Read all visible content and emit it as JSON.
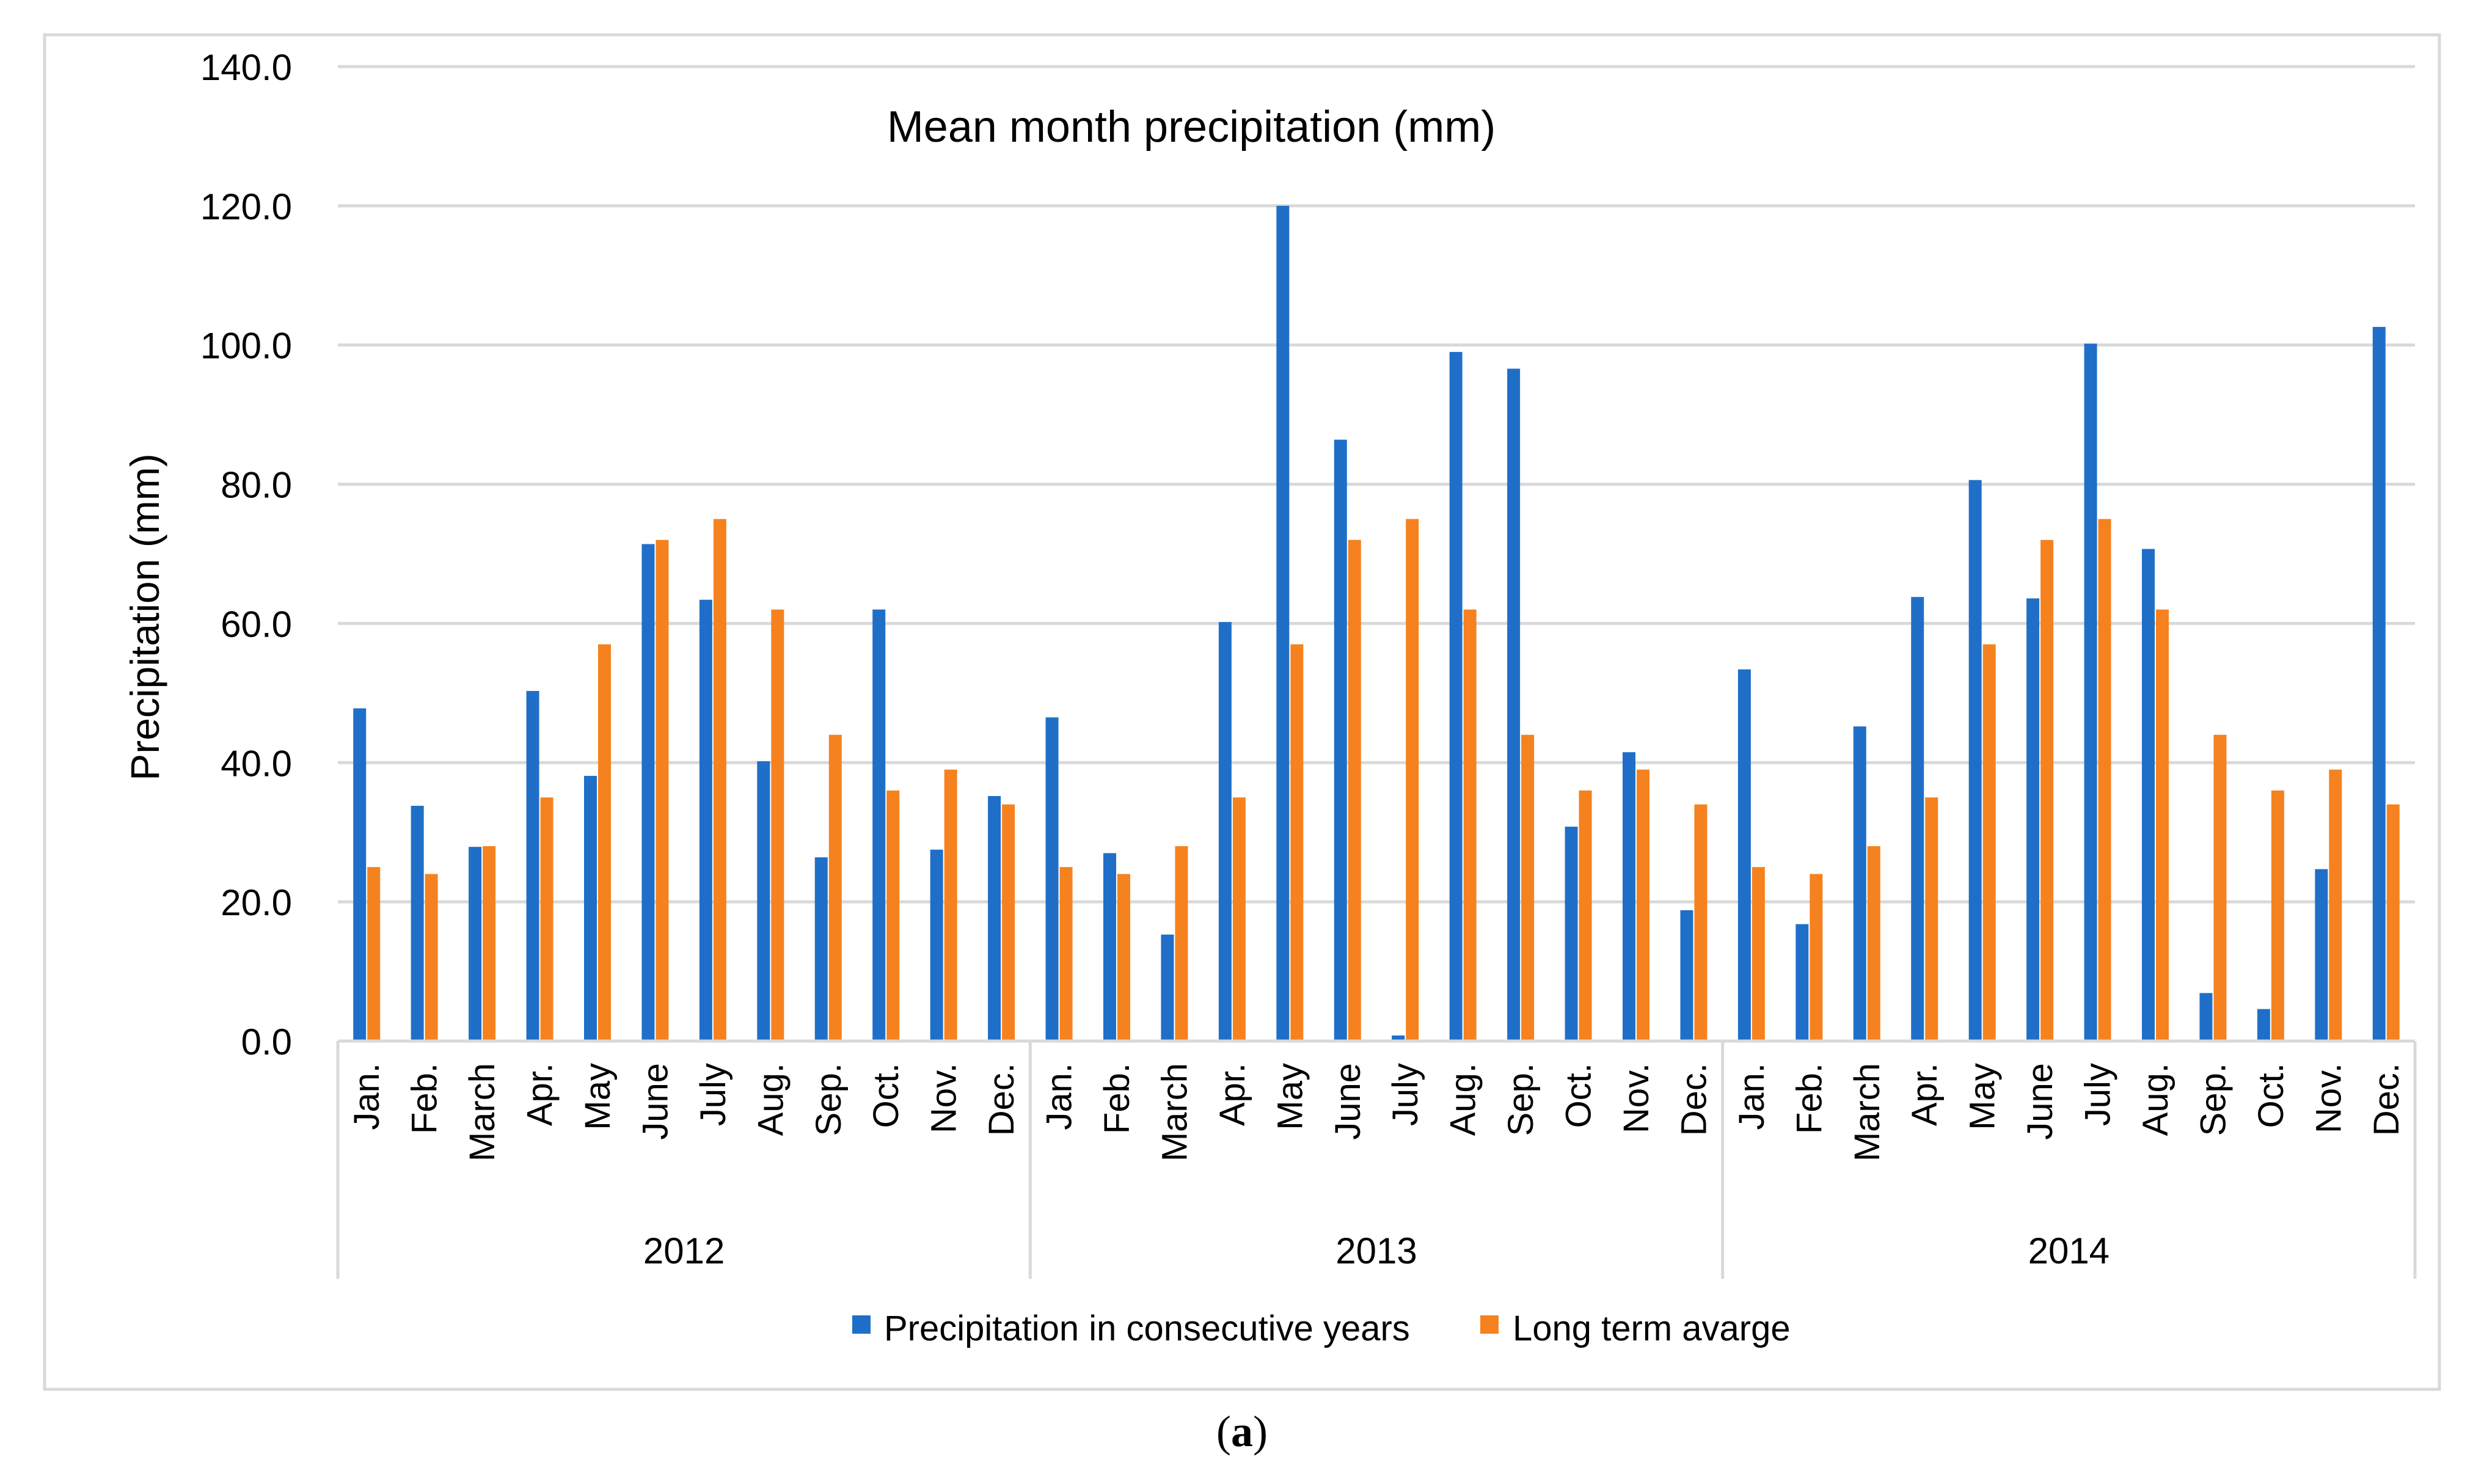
{
  "chart_data": {
    "type": "bar",
    "title": "Mean month precipitation (mm)",
    "xlabel": "",
    "ylabel": "Precipitation (mm)",
    "ylim": [
      0,
      140
    ],
    "y_ticks": [
      "0.0",
      "20.0",
      "40.0",
      "60.0",
      "80.0",
      "100.0",
      "120.0",
      "140.0"
    ],
    "grid": true,
    "legend_position": "bottom",
    "groups": [
      "2012",
      "2013",
      "2014"
    ],
    "months": [
      "Jan.",
      "Feb.",
      "March",
      "Apr.",
      "May",
      "June",
      "July",
      "Aug.",
      "Sep.",
      "Oct.",
      "Nov.",
      "Dec."
    ],
    "series": [
      {
        "name": "Precipitation in consecutive years",
        "color": "#1F6FC8",
        "values": [
          47.8,
          33.8,
          27.9,
          50.3,
          38.1,
          71.4,
          63.4,
          40.2,
          26.4,
          62.0,
          27.5,
          35.2,
          46.5,
          27.0,
          15.3,
          60.2,
          120.0,
          86.4,
          0.8,
          99.0,
          96.6,
          30.8,
          41.5,
          18.8,
          53.4,
          16.8,
          45.2,
          63.8,
          80.6,
          63.6,
          100.2,
          70.7,
          6.9,
          4.6,
          24.7,
          102.6
        ]
      },
      {
        "name": "Long term avarge",
        "color": "#F5821F",
        "values": [
          25,
          24,
          28,
          35,
          57,
          72,
          75,
          62,
          44,
          36,
          39,
          34,
          25,
          24,
          28,
          35,
          57,
          72,
          75,
          62,
          44,
          36,
          39,
          34,
          25,
          24,
          28,
          35,
          57,
          72,
          75,
          62,
          44,
          36,
          39,
          34
        ]
      }
    ]
  },
  "panel_label": {
    "open": "(",
    "letter": "a",
    "close": ")"
  }
}
